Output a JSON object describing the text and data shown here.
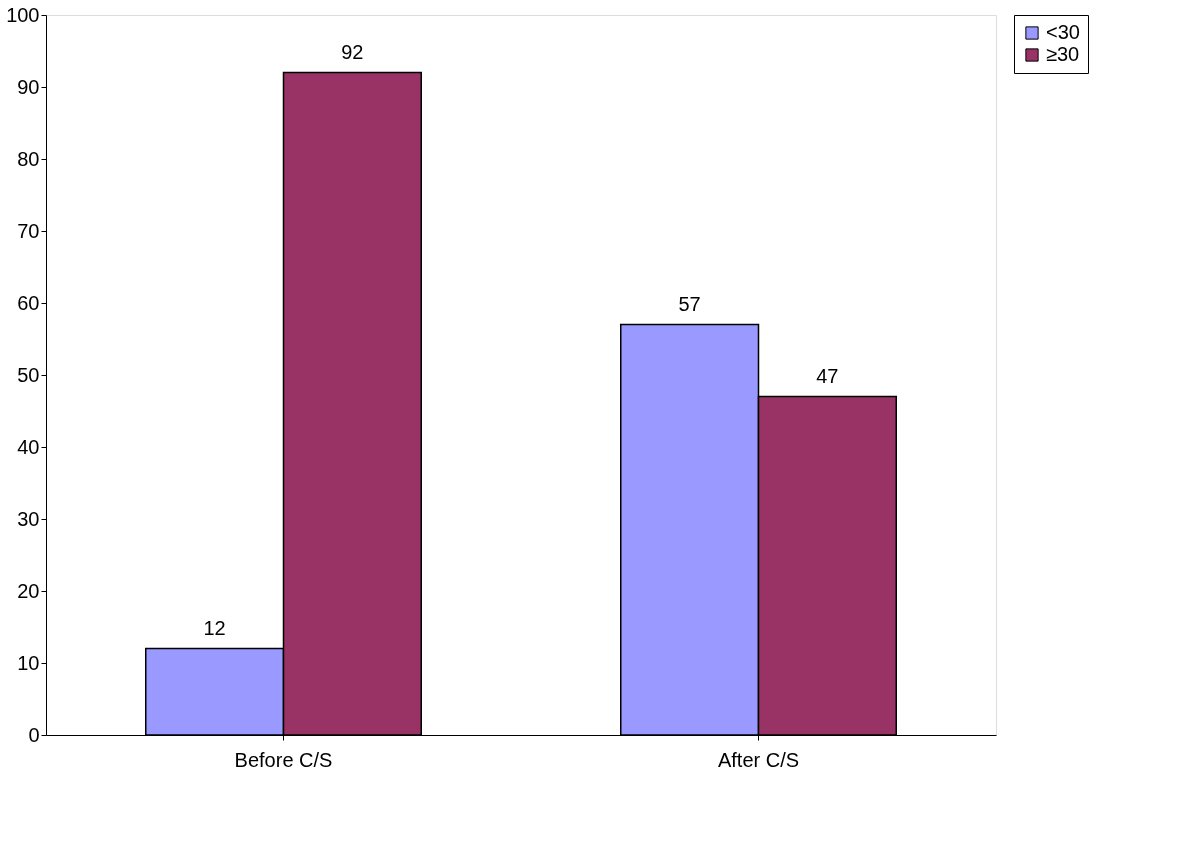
{
  "chart_data": {
    "type": "bar",
    "categories": [
      "Before C/S",
      "After C/S"
    ],
    "series": [
      {
        "name": "<30",
        "color": "#9999ff",
        "values": [
          12,
          57
        ]
      },
      {
        "name": "≥30",
        "color": "#993366",
        "values": [
          92,
          47
        ]
      }
    ],
    "ylim": [
      0,
      100
    ],
    "yticks": [
      0,
      10,
      20,
      30,
      40,
      50,
      60,
      70,
      80,
      90,
      100
    ],
    "grid": false,
    "legend": "right",
    "data_labels": true
  }
}
